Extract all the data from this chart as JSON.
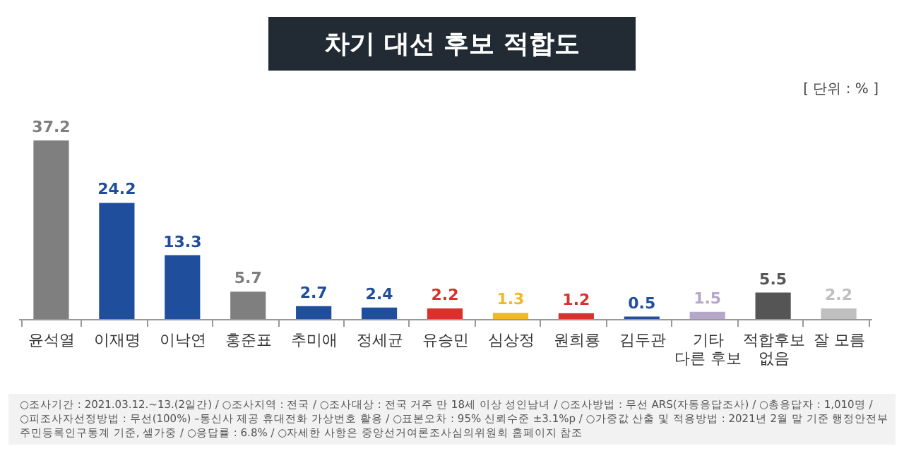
{
  "chart_data": {
    "type": "bar",
    "title": "차기 대선 후보 적합도",
    "categories": [
      "윤석열",
      "이재명",
      "이낙연",
      "홍준표",
      "추미애",
      "정세균",
      "유승민",
      "심상정",
      "원희룡",
      "김두관",
      "기타 다른 후보",
      "적합후보 없음",
      "잘 모름"
    ],
    "values": [
      37.2,
      24.2,
      13.3,
      5.7,
      2.7,
      2.4,
      2.2,
      1.3,
      1.2,
      0.5,
      1.5,
      5.5,
      2.2
    ],
    "colors": [
      "#7f7f7f",
      "#1f4e9c",
      "#1f4e9c",
      "#7f7f7f",
      "#1f4e9c",
      "#1f4e9c",
      "#d9312b",
      "#f2b926",
      "#d9312b",
      "#1f4e9c",
      "#b4a7c9",
      "#555555",
      "#bfbfbf"
    ],
    "data_labels": true,
    "annotations": [
      "[ 단위 : % ]",
      "○조사기간 : 2021.03.12.~13.(2일간) / ○조사지역 : 전국 / ○조사대상 : 전국 거주 만 18세 이상 성인남녀 / ○조사방법 : 무선 ARS(자동응답조사) / ○총응답자 : 1,010명 /",
      "○피조사자선정방법 : 무선(100%) –통신사 제공 휴대전화 가상번호 활용 / ○표본오차 : 95% 신뢰수준 ±3.1%p / ○가중값 산출 및 적용방법 : 2021년 2월 말 기준 행정안전부",
      "주민등록인구통계 기준, 셀가중 / ○응답률 : 6.8% / ○자세한 사항은 중앙선거여론조사심의위원회 홈페이지 참조"
    ]
  }
}
